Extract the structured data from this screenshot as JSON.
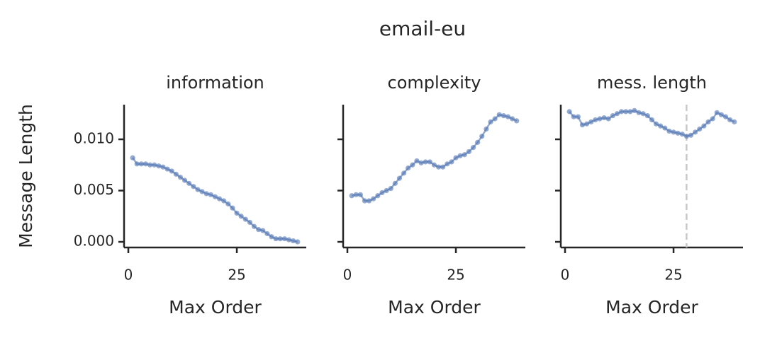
{
  "title": "email-eu",
  "chart_data": [
    {
      "type": "line",
      "title": "information",
      "xlabel": "Max Order",
      "ylabel": "Message Length",
      "color": "#4c72b0",
      "x": [
        1,
        2,
        3,
        4,
        5,
        6,
        7,
        8,
        9,
        10,
        11,
        12,
        13,
        14,
        15,
        16,
        17,
        18,
        19,
        20,
        21,
        22,
        23,
        24,
        25,
        26,
        27,
        28,
        29,
        30,
        31,
        32,
        33,
        34,
        35,
        36,
        37,
        38,
        39
      ],
      "values": [
        0.0082,
        0.0076,
        0.0076,
        0.0076,
        0.0075,
        0.0075,
        0.0074,
        0.0073,
        0.0071,
        0.0069,
        0.0066,
        0.0063,
        0.006,
        0.0057,
        0.0054,
        0.0051,
        0.0049,
        0.0047,
        0.0046,
        0.0044,
        0.0042,
        0.004,
        0.0037,
        0.0033,
        0.0028,
        0.0025,
        0.0022,
        0.0019,
        0.0015,
        0.0012,
        0.0011,
        0.0008,
        0.0005,
        0.0003,
        0.0003,
        0.0003,
        0.0002,
        0.0001,
        0.0
      ],
      "xlim": [
        -0.98,
        41
      ],
      "ylim": [
        -0.00055,
        0.01338
      ],
      "xticks": [
        0,
        25
      ],
      "yticks": [
        {
          "value": 0,
          "label": "0.000"
        },
        {
          "value": 0.005,
          "label": "0.005"
        },
        {
          "value": 0.01,
          "label": "0.010"
        }
      ]
    },
    {
      "type": "line",
      "title": "complexity",
      "xlabel": "Max Order",
      "color": "#4c72b0",
      "x": [
        1,
        2,
        3,
        4,
        5,
        6,
        7,
        8,
        9,
        10,
        11,
        12,
        13,
        14,
        15,
        16,
        17,
        18,
        19,
        20,
        21,
        22,
        23,
        24,
        25,
        26,
        27,
        28,
        29,
        30,
        31,
        32,
        33,
        34,
        35,
        36,
        37,
        38,
        39
      ],
      "values": [
        0.0045,
        0.0046,
        0.0046,
        0.004,
        0.004,
        0.0042,
        0.0045,
        0.0048,
        0.005,
        0.0052,
        0.0057,
        0.0062,
        0.0067,
        0.0072,
        0.0075,
        0.0079,
        0.0077,
        0.0078,
        0.0078,
        0.0075,
        0.0073,
        0.0073,
        0.0076,
        0.0078,
        0.0082,
        0.0084,
        0.0085,
        0.0088,
        0.0092,
        0.0097,
        0.0103,
        0.011,
        0.0117,
        0.012,
        0.0124,
        0.0123,
        0.0122,
        0.012,
        0.0118
      ],
      "xlim": [
        -0.98,
        41
      ],
      "ylim": [
        -0.00055,
        0.01338
      ],
      "xticks": [
        0,
        25
      ]
    },
    {
      "type": "line",
      "title": "mess. length",
      "xlabel": "Max Order",
      "color": "#4c72b0",
      "x": [
        1,
        2,
        3,
        4,
        5,
        6,
        7,
        8,
        9,
        10,
        11,
        12,
        13,
        14,
        15,
        16,
        17,
        18,
        19,
        20,
        21,
        22,
        23,
        24,
        25,
        26,
        27,
        28,
        29,
        30,
        31,
        32,
        33,
        34,
        35,
        36,
        37,
        38,
        39
      ],
      "values": [
        0.0127,
        0.0122,
        0.0122,
        0.0114,
        0.0115,
        0.0117,
        0.0119,
        0.012,
        0.0121,
        0.012,
        0.0123,
        0.0125,
        0.0127,
        0.0127,
        0.0127,
        0.0128,
        0.0126,
        0.0125,
        0.0123,
        0.0119,
        0.0115,
        0.0113,
        0.0111,
        0.0108,
        0.0107,
        0.0106,
        0.0105,
        0.0103,
        0.0104,
        0.0107,
        0.011,
        0.0113,
        0.0117,
        0.012,
        0.0126,
        0.0124,
        0.0122,
        0.0119,
        0.0117
      ],
      "xlim": [
        -0.98,
        41
      ],
      "ylim": [
        -0.00055,
        0.01338
      ],
      "xticks": [
        0,
        25
      ],
      "vline": 28
    }
  ]
}
